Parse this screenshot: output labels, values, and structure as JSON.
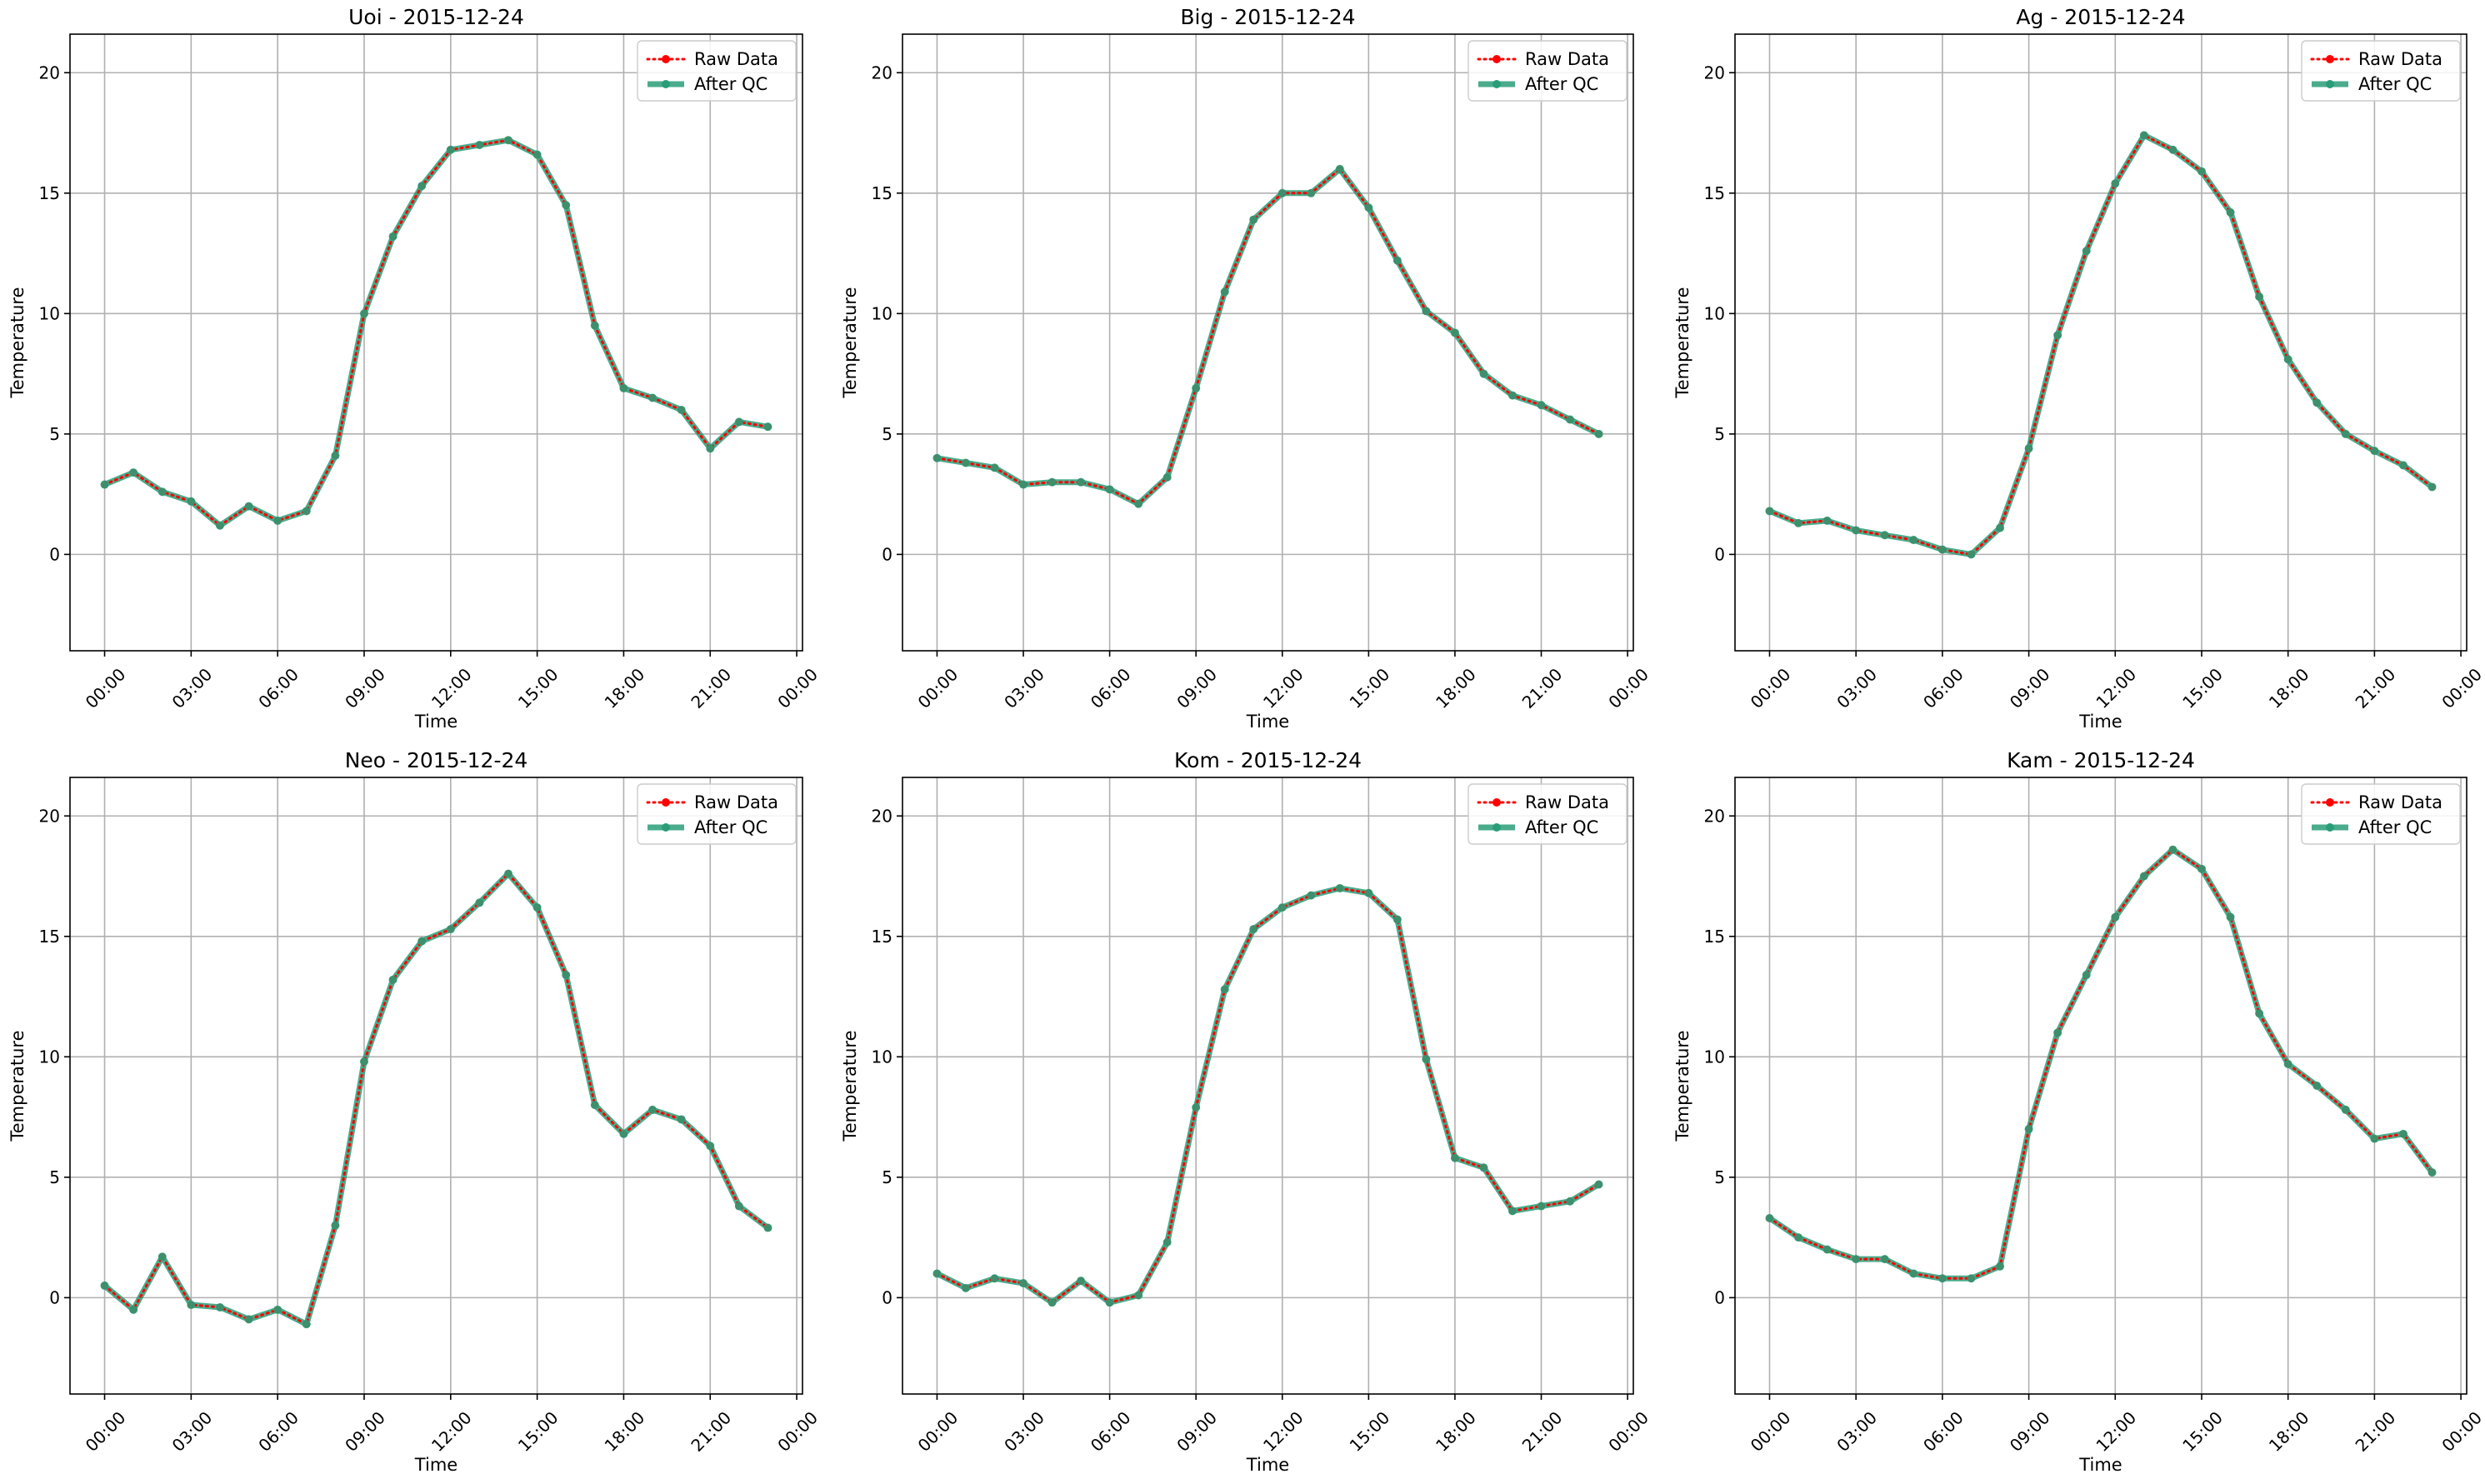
{
  "figure": {
    "colors": {
      "raw": "#ff0000",
      "qc": "#2a9d78",
      "grid": "#b0b0b0"
    }
  },
  "chart_data": [
    {
      "type": "line",
      "title": "Uoi - 2015-12-24",
      "xlabel": "Time",
      "ylabel": "Temperature",
      "xticks": [
        "00:00",
        "03:00",
        "06:00",
        "09:00",
        "12:00",
        "15:00",
        "18:00",
        "21:00",
        "00:00"
      ],
      "yticks": [
        0,
        5,
        10,
        15,
        20
      ],
      "ylim": [
        -4,
        21.6
      ],
      "xlim": [
        -1.2,
        24.2
      ],
      "grid": true,
      "legend": {
        "placement": "top-right",
        "entries": [
          "Raw Data",
          "After QC"
        ]
      },
      "x": [
        0,
        1,
        2,
        3,
        4,
        5,
        6,
        7,
        8,
        9,
        10,
        11,
        12,
        13,
        14,
        15,
        16,
        17,
        18,
        19,
        20,
        21,
        22,
        23
      ],
      "series": [
        {
          "name": "Raw Data",
          "values": [
            2.9,
            3.4,
            2.6,
            2.2,
            1.2,
            2.0,
            1.4,
            1.8,
            4.1,
            10.0,
            13.2,
            15.3,
            16.8,
            17.0,
            17.2,
            16.6,
            14.5,
            9.5,
            6.9,
            6.5,
            6.0,
            4.4,
            5.5,
            5.3
          ]
        },
        {
          "name": "After QC",
          "values": [
            2.9,
            3.4,
            2.6,
            2.2,
            1.2,
            2.0,
            1.4,
            1.8,
            4.1,
            10.0,
            13.2,
            15.3,
            16.8,
            17.0,
            17.2,
            16.6,
            14.5,
            9.5,
            6.9,
            6.5,
            6.0,
            4.4,
            5.5,
            5.3
          ]
        }
      ]
    },
    {
      "type": "line",
      "title": "Big - 2015-12-24",
      "xlabel": "Time",
      "ylabel": "Temperature",
      "xticks": [
        "00:00",
        "03:00",
        "06:00",
        "09:00",
        "12:00",
        "15:00",
        "18:00",
        "21:00",
        "00:00"
      ],
      "yticks": [
        0,
        5,
        10,
        15,
        20
      ],
      "ylim": [
        -4,
        21.6
      ],
      "xlim": [
        -1.2,
        24.2
      ],
      "grid": true,
      "legend": {
        "placement": "top-right",
        "entries": [
          "Raw Data",
          "After QC"
        ]
      },
      "x": [
        0,
        1,
        2,
        3,
        4,
        5,
        6,
        7,
        8,
        9,
        10,
        11,
        12,
        13,
        14,
        15,
        16,
        17,
        18,
        19,
        20,
        21,
        22,
        23
      ],
      "series": [
        {
          "name": "Raw Data",
          "values": [
            4.0,
            3.8,
            3.6,
            2.9,
            3.0,
            3.0,
            2.7,
            2.1,
            3.2,
            6.9,
            10.9,
            13.9,
            15.0,
            15.0,
            16.0,
            14.4,
            12.2,
            10.1,
            9.2,
            7.5,
            6.6,
            6.2,
            5.6,
            5.0
          ]
        },
        {
          "name": "After QC",
          "values": [
            4.0,
            3.8,
            3.6,
            2.9,
            3.0,
            3.0,
            2.7,
            2.1,
            3.2,
            6.9,
            10.9,
            13.9,
            15.0,
            15.0,
            16.0,
            14.4,
            12.2,
            10.1,
            9.2,
            7.5,
            6.6,
            6.2,
            5.6,
            5.0
          ]
        }
      ]
    },
    {
      "type": "line",
      "title": "Ag - 2015-12-24",
      "xlabel": "Time",
      "ylabel": "Temperature",
      "xticks": [
        "00:00",
        "03:00",
        "06:00",
        "09:00",
        "12:00",
        "15:00",
        "18:00",
        "21:00",
        "00:00"
      ],
      "yticks": [
        0,
        5,
        10,
        15,
        20
      ],
      "ylim": [
        -4,
        21.6
      ],
      "xlim": [
        -1.2,
        24.2
      ],
      "grid": true,
      "legend": {
        "placement": "top-right",
        "entries": [
          "Raw Data",
          "After QC"
        ]
      },
      "x": [
        0,
        1,
        2,
        3,
        4,
        5,
        6,
        7,
        8,
        9,
        10,
        11,
        12,
        13,
        14,
        15,
        16,
        17,
        18,
        19,
        20,
        21,
        22,
        23
      ],
      "series": [
        {
          "name": "Raw Data",
          "values": [
            1.8,
            1.3,
            1.4,
            1.0,
            0.8,
            0.6,
            0.2,
            0.0,
            1.1,
            4.4,
            9.1,
            12.6,
            15.4,
            17.4,
            16.8,
            15.9,
            14.2,
            10.7,
            8.1,
            6.3,
            5.0,
            4.3,
            3.7,
            2.8
          ]
        },
        {
          "name": "After QC",
          "values": [
            1.8,
            1.3,
            1.4,
            1.0,
            0.8,
            0.6,
            0.2,
            0.0,
            1.1,
            4.4,
            9.1,
            12.6,
            15.4,
            17.4,
            16.8,
            15.9,
            14.2,
            10.7,
            8.1,
            6.3,
            5.0,
            4.3,
            3.7,
            2.8
          ]
        }
      ]
    },
    {
      "type": "line",
      "title": "Neo - 2015-12-24",
      "xlabel": "Time",
      "ylabel": "Temperature",
      "xticks": [
        "00:00",
        "03:00",
        "06:00",
        "09:00",
        "12:00",
        "15:00",
        "18:00",
        "21:00",
        "00:00"
      ],
      "yticks": [
        0,
        5,
        10,
        15,
        20
      ],
      "ylim": [
        -4,
        21.6
      ],
      "xlim": [
        -1.2,
        24.2
      ],
      "grid": true,
      "legend": {
        "placement": "top-right",
        "entries": [
          "Raw Data",
          "After QC"
        ]
      },
      "x": [
        0,
        1,
        2,
        3,
        4,
        5,
        6,
        7,
        8,
        9,
        10,
        11,
        12,
        13,
        14,
        15,
        16,
        17,
        18,
        19,
        20,
        21,
        22,
        23
      ],
      "series": [
        {
          "name": "Raw Data",
          "values": [
            0.5,
            -0.5,
            1.7,
            -0.3,
            -0.4,
            -0.9,
            -0.5,
            -1.1,
            3.0,
            9.8,
            13.2,
            14.8,
            15.3,
            16.4,
            17.6,
            16.2,
            13.4,
            8.0,
            6.8,
            7.8,
            7.4,
            6.3,
            3.8,
            2.9
          ]
        },
        {
          "name": "After QC",
          "values": [
            0.5,
            -0.5,
            1.7,
            -0.3,
            -0.4,
            -0.9,
            -0.5,
            -1.1,
            3.0,
            9.8,
            13.2,
            14.8,
            15.3,
            16.4,
            17.6,
            16.2,
            13.4,
            8.0,
            6.8,
            7.8,
            7.4,
            6.3,
            3.8,
            2.9
          ]
        }
      ]
    },
    {
      "type": "line",
      "title": "Kom - 2015-12-24",
      "xlabel": "Time",
      "ylabel": "Temperature",
      "xticks": [
        "00:00",
        "03:00",
        "06:00",
        "09:00",
        "12:00",
        "15:00",
        "18:00",
        "21:00",
        "00:00"
      ],
      "yticks": [
        0,
        5,
        10,
        15,
        20
      ],
      "ylim": [
        -4,
        21.6
      ],
      "xlim": [
        -1.2,
        24.2
      ],
      "grid": true,
      "legend": {
        "placement": "top-right",
        "entries": [
          "Raw Data",
          "After QC"
        ]
      },
      "x": [
        0,
        1,
        2,
        3,
        4,
        5,
        6,
        7,
        8,
        9,
        10,
        11,
        12,
        13,
        14,
        15,
        16,
        17,
        18,
        19,
        20,
        21,
        22,
        23
      ],
      "series": [
        {
          "name": "Raw Data",
          "values": [
            1.0,
            0.4,
            0.8,
            0.6,
            -0.2,
            0.7,
            -0.2,
            0.1,
            2.3,
            7.9,
            12.8,
            15.3,
            16.2,
            16.7,
            17.0,
            16.8,
            15.7,
            9.9,
            5.8,
            5.4,
            3.6,
            3.8,
            4.0,
            4.7
          ]
        },
        {
          "name": "After QC",
          "values": [
            1.0,
            0.4,
            0.8,
            0.6,
            -0.2,
            0.7,
            -0.2,
            0.1,
            2.3,
            7.9,
            12.8,
            15.3,
            16.2,
            16.7,
            17.0,
            16.8,
            15.7,
            9.9,
            5.8,
            5.4,
            3.6,
            3.8,
            4.0,
            4.7
          ]
        }
      ]
    },
    {
      "type": "line",
      "title": "Kam - 2015-12-24",
      "xlabel": "Time",
      "ylabel": "Temperature",
      "xticks": [
        "00:00",
        "03:00",
        "06:00",
        "09:00",
        "12:00",
        "15:00",
        "18:00",
        "21:00",
        "00:00"
      ],
      "yticks": [
        0,
        5,
        10,
        15,
        20
      ],
      "ylim": [
        -4,
        21.6
      ],
      "xlim": [
        -1.2,
        24.2
      ],
      "grid": true,
      "legend": {
        "placement": "top-right",
        "entries": [
          "Raw Data",
          "After QC"
        ]
      },
      "x": [
        0,
        1,
        2,
        3,
        4,
        5,
        6,
        7,
        8,
        9,
        10,
        11,
        12,
        13,
        14,
        15,
        16,
        17,
        18,
        19,
        20,
        21,
        22,
        23
      ],
      "series": [
        {
          "name": "Raw Data",
          "values": [
            3.3,
            2.5,
            2.0,
            1.6,
            1.6,
            1.0,
            0.8,
            0.8,
            1.3,
            7.0,
            11.0,
            13.4,
            15.8,
            17.5,
            18.6,
            17.8,
            15.8,
            11.8,
            9.7,
            8.8,
            7.8,
            6.6,
            6.8,
            5.2
          ]
        },
        {
          "name": "After QC",
          "values": [
            3.3,
            2.5,
            2.0,
            1.6,
            1.6,
            1.0,
            0.8,
            0.8,
            1.3,
            7.0,
            11.0,
            13.4,
            15.8,
            17.5,
            18.6,
            17.8,
            15.8,
            11.8,
            9.7,
            8.8,
            7.8,
            6.6,
            6.8,
            5.2
          ]
        }
      ]
    }
  ]
}
